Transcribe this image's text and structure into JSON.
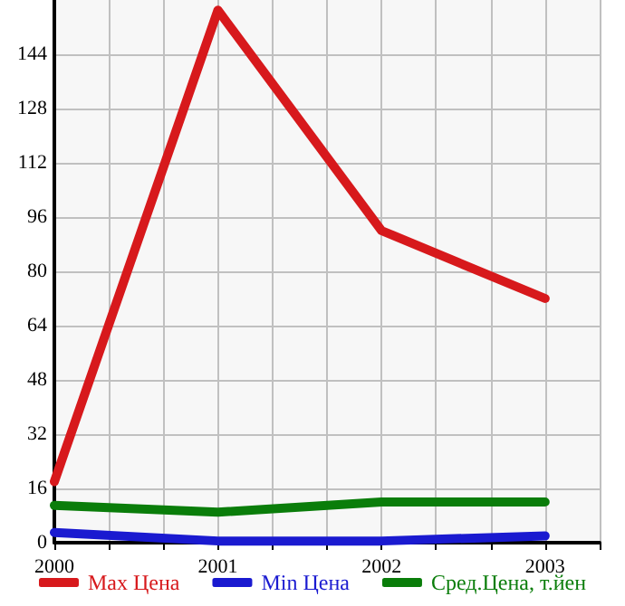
{
  "chart_data": {
    "type": "line",
    "x": [
      2000,
      2001,
      2002,
      2003
    ],
    "xlim": [
      2000,
      2003.3333
    ],
    "xticks": [
      2000,
      {
        "value": 2000.3333,
        "label": null
      },
      {
        "value": 2000.6667,
        "label": null
      },
      2001,
      {
        "value": 2001.3333,
        "label": null
      },
      {
        "value": 2001.6667,
        "label": null
      },
      2002,
      {
        "value": 2002.3333,
        "label": null
      },
      {
        "value": 2002.6667,
        "label": null
      },
      2003,
      {
        "value": 2003.3333,
        "label": null
      }
    ],
    "ylim": [
      0,
      160
    ],
    "yticks": [
      0,
      16,
      32,
      48,
      64,
      80,
      96,
      112,
      128,
      144
    ],
    "grid": true,
    "legend": "bottom",
    "marker": "none",
    "line_style": "solid",
    "series": [
      {
        "name": "Max Цена",
        "color": "#d7191c",
        "values": [
          18,
          157,
          92,
          72
        ]
      },
      {
        "name": "Min Цена",
        "color": "#1a1ad0",
        "values": [
          3,
          0.5,
          0.5,
          2
        ]
      },
      {
        "name": "Сред.Цена, т.йен",
        "color": "#0a7d0a",
        "values": [
          11,
          9,
          12,
          12
        ]
      }
    ]
  }
}
